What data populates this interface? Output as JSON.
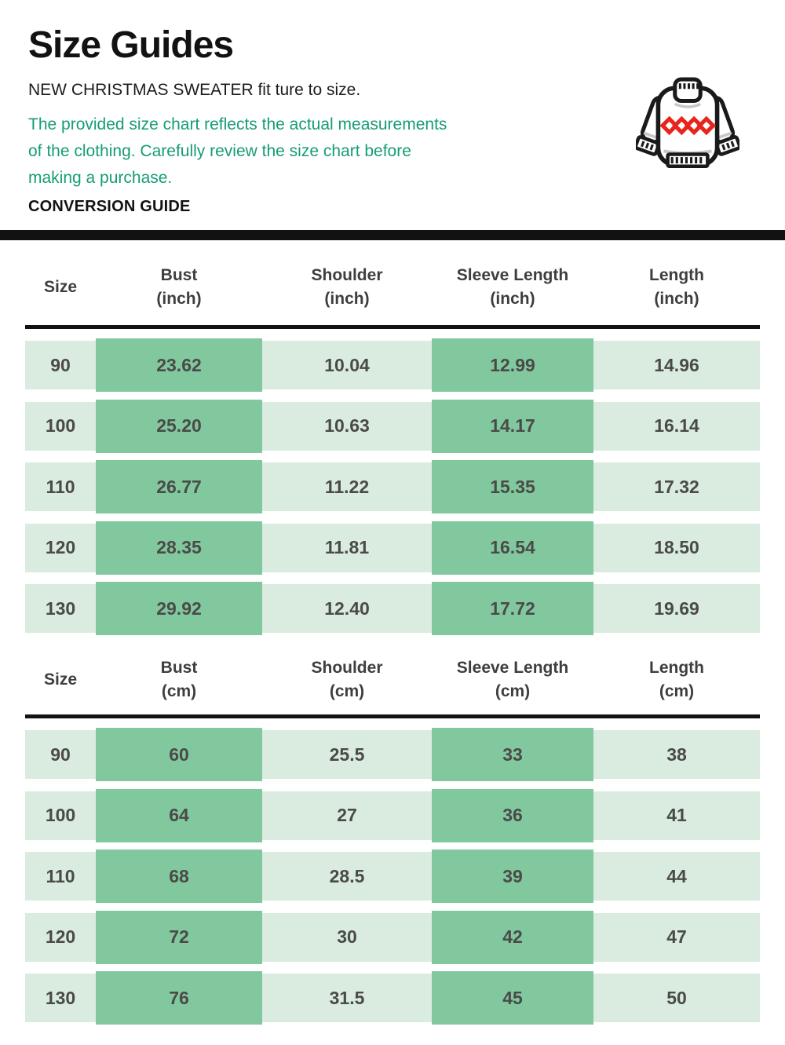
{
  "page": {
    "title": "Size Guides",
    "subtitle": "NEW CHRISTMAS SWEATER fit ture to size.",
    "note_lines": [
      "The provided size chart reflects the actual measurements",
      "of the clothing. Carefully review the size chart before",
      "making a purchase."
    ],
    "section_label": "CONVERSION GUIDE"
  },
  "icons": {
    "sweater": "christmas-sweater-icon"
  },
  "colors": {
    "ink": "#121212",
    "note_green": "#169c76",
    "header_text": "#3e3e3e",
    "table_text": "#4a4a48",
    "cell_light": "#d9ecdf",
    "cell_dark": "#82c89e",
    "diamond_red": "#e8251d"
  },
  "tables": [
    {
      "unit": "inch",
      "columns": [
        {
          "label": "Size",
          "unit": ""
        },
        {
          "label": "Bust",
          "unit": "(inch)"
        },
        {
          "label": "Shoulder",
          "unit": "(inch)"
        },
        {
          "label": "Sleeve Length",
          "unit": "(inch)"
        },
        {
          "label": "Length",
          "unit": "(inch)"
        }
      ],
      "rows": [
        {
          "size": "90",
          "bust": "23.62",
          "shoulder": "10.04",
          "sleeve": "12.99",
          "length": "14.96"
        },
        {
          "size": "100",
          "bust": "25.20",
          "shoulder": "10.63",
          "sleeve": "14.17",
          "length": "16.14"
        },
        {
          "size": "110",
          "bust": "26.77",
          "shoulder": "11.22",
          "sleeve": "15.35",
          "length": "17.32"
        },
        {
          "size": "120",
          "bust": "28.35",
          "shoulder": "11.81",
          "sleeve": "16.54",
          "length": "18.50"
        },
        {
          "size": "130",
          "bust": "29.92",
          "shoulder": "12.40",
          "sleeve": "17.72",
          "length": "19.69"
        }
      ]
    },
    {
      "unit": "cm",
      "columns": [
        {
          "label": "Size",
          "unit": ""
        },
        {
          "label": "Bust",
          "unit": "(cm)"
        },
        {
          "label": "Shoulder",
          "unit": "(cm)"
        },
        {
          "label": "Sleeve Length",
          "unit": "(cm)"
        },
        {
          "label": "Length",
          "unit": "(cm)"
        }
      ],
      "rows": [
        {
          "size": "90",
          "bust": "60",
          "shoulder": "25.5",
          "sleeve": "33",
          "length": "38"
        },
        {
          "size": "100",
          "bust": "64",
          "shoulder": "27",
          "sleeve": "36",
          "length": "41"
        },
        {
          "size": "110",
          "bust": "68",
          "shoulder": "28.5",
          "sleeve": "39",
          "length": "44"
        },
        {
          "size": "120",
          "bust": "72",
          "shoulder": "30",
          "sleeve": "42",
          "length": "47"
        },
        {
          "size": "130",
          "bust": "76",
          "shoulder": "31.5",
          "sleeve": "45",
          "length": "50"
        }
      ]
    }
  ]
}
